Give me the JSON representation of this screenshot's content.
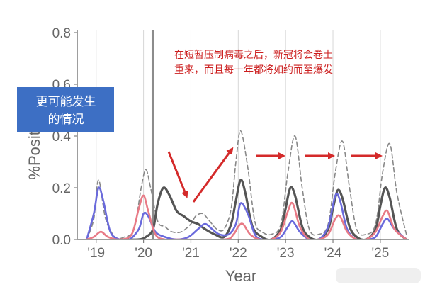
{
  "chart_data": {
    "type": "line",
    "xlabel": "Year",
    "ylabel": "%Positive ILI",
    "x_tick_labels": [
      "'19",
      "'20",
      "'21",
      "'22",
      "'23",
      "'24",
      "'25"
    ],
    "x_tick_values": [
      2019,
      2020,
      2021,
      2022,
      2023,
      2024,
      2025
    ],
    "xlim": [
      2018.6,
      2025.6
    ],
    "ylim": [
      0,
      0.8
    ],
    "y_ticks": [
      "0.0",
      "0.2",
      "0.4",
      "0.6",
      "0.8"
    ],
    "y_tick_values": [
      0,
      0.2,
      0.4,
      0.6,
      0.8
    ],
    "grid": "vertical",
    "intervention_line_x": 2020.2,
    "series": [
      {
        "style": "dashed",
        "color": "#888888",
        "x": [
          2018.8,
          2018.95,
          2019.05,
          2019.2,
          2019.4,
          2019.6,
          2019.8,
          2019.95,
          2020.05,
          2020.15,
          2020.3,
          2020.45,
          2020.6,
          2020.8,
          2021.0,
          2021.1,
          2021.25,
          2021.4,
          2021.55,
          2021.7,
          2021.85,
          2021.95,
          2022.05,
          2022.2,
          2022.35,
          2022.5,
          2022.7,
          2022.9,
          2023.05,
          2023.2,
          2023.35,
          2023.5,
          2023.7,
          2023.9,
          2024.05,
          2024.2,
          2024.35,
          2024.5,
          2024.7,
          2024.9,
          2025.05,
          2025.2,
          2025.35,
          2025.55
        ],
        "y": [
          0.0,
          0.08,
          0.23,
          0.08,
          0.01,
          0.01,
          0.04,
          0.2,
          0.27,
          0.2,
          0.07,
          0.05,
          0.03,
          0.03,
          0.06,
          0.09,
          0.1,
          0.07,
          0.04,
          0.04,
          0.12,
          0.3,
          0.42,
          0.28,
          0.07,
          0.03,
          0.02,
          0.06,
          0.26,
          0.4,
          0.2,
          0.04,
          0.02,
          0.06,
          0.26,
          0.38,
          0.2,
          0.04,
          0.02,
          0.06,
          0.26,
          0.37,
          0.18,
          0.02
        ]
      },
      {
        "style": "solid",
        "color": "#555555",
        "x": [
          2019.6,
          2019.9,
          2020.05,
          2020.2,
          2020.3,
          2020.42,
          2020.55,
          2020.7,
          2020.85,
          2021.0,
          2021.15,
          2021.3,
          2021.5,
          2021.7,
          2021.85,
          2021.95,
          2022.05,
          2022.15,
          2022.3,
          2022.5,
          2022.7,
          2022.9,
          2023.0,
          2023.1,
          2023.2,
          2023.35,
          2023.5,
          2023.7,
          2023.9,
          2024.0,
          2024.1,
          2024.2,
          2024.35,
          2024.5,
          2024.7,
          2024.9,
          2025.0,
          2025.1,
          2025.2,
          2025.35,
          2025.55
        ],
        "y": [
          0.0,
          0.0,
          0.01,
          0.04,
          0.14,
          0.2,
          0.17,
          0.11,
          0.09,
          0.07,
          0.06,
          0.04,
          0.02,
          0.01,
          0.06,
          0.15,
          0.23,
          0.18,
          0.05,
          0.01,
          0.0,
          0.04,
          0.12,
          0.2,
          0.17,
          0.05,
          0.01,
          0.0,
          0.04,
          0.12,
          0.19,
          0.16,
          0.05,
          0.01,
          0.0,
          0.04,
          0.13,
          0.2,
          0.16,
          0.04,
          0.0
        ]
      },
      {
        "style": "solid",
        "color": "#6a6adc",
        "x": [
          2018.8,
          2018.95,
          2019.05,
          2019.15,
          2019.3,
          2019.5,
          2019.7,
          2019.9,
          2020.0,
          2020.1,
          2020.25,
          2020.45,
          2020.7,
          2020.95,
          2021.15,
          2021.3,
          2021.45,
          2021.6,
          2021.8,
          2021.95,
          2022.05,
          2022.2,
          2022.35,
          2022.5,
          2022.7,
          2022.9,
          2023.05,
          2023.15,
          2023.3,
          2023.5,
          2023.7,
          2023.9,
          2024.05,
          2024.15,
          2024.3,
          2024.5,
          2024.7,
          2024.9,
          2025.05,
          2025.15,
          2025.3,
          2025.55
        ],
        "y": [
          0.0,
          0.1,
          0.2,
          0.15,
          0.03,
          0.0,
          0.0,
          0.04,
          0.1,
          0.09,
          0.03,
          0.01,
          0.0,
          0.01,
          0.04,
          0.06,
          0.04,
          0.02,
          0.02,
          0.06,
          0.14,
          0.1,
          0.02,
          0.0,
          0.0,
          0.01,
          0.05,
          0.07,
          0.03,
          0.0,
          0.0,
          0.05,
          0.17,
          0.15,
          0.04,
          0.0,
          0.0,
          0.01,
          0.06,
          0.08,
          0.04,
          0.0
        ]
      },
      {
        "style": "solid",
        "color": "#e87a86",
        "x": [
          2018.8,
          2018.95,
          2019.1,
          2019.25,
          2019.5,
          2019.75,
          2019.9,
          2020.0,
          2020.1,
          2020.25,
          2020.45,
          2020.7,
          2021.7,
          2021.9,
          2022.0,
          2022.1,
          2022.25,
          2022.45,
          2022.7,
          2022.9,
          2023.05,
          2023.15,
          2023.3,
          2023.5,
          2023.7,
          2023.9,
          2024.05,
          2024.15,
          2024.3,
          2024.5,
          2024.7,
          2024.9,
          2025.05,
          2025.15,
          2025.3,
          2025.55
        ],
        "y": [
          0.0,
          0.01,
          0.03,
          0.01,
          0.0,
          0.02,
          0.12,
          0.17,
          0.11,
          0.02,
          0.0,
          0.0,
          0.0,
          0.02,
          0.05,
          0.06,
          0.02,
          0.0,
          0.0,
          0.03,
          0.11,
          0.14,
          0.05,
          0.0,
          0.0,
          0.02,
          0.08,
          0.09,
          0.03,
          0.0,
          0.0,
          0.03,
          0.09,
          0.11,
          0.04,
          0.0
        ]
      }
    ],
    "annotations": {
      "box_lines": [
        "更可能发生",
        "的情况"
      ],
      "red_note_lines": [
        "在短暂压制病毒之后，新冠将会卷土",
        "重来，而且每一年都将如约而至爆发"
      ]
    },
    "colors": {
      "arrow": "#d42a2a",
      "box": "#3d6fc4"
    }
  }
}
